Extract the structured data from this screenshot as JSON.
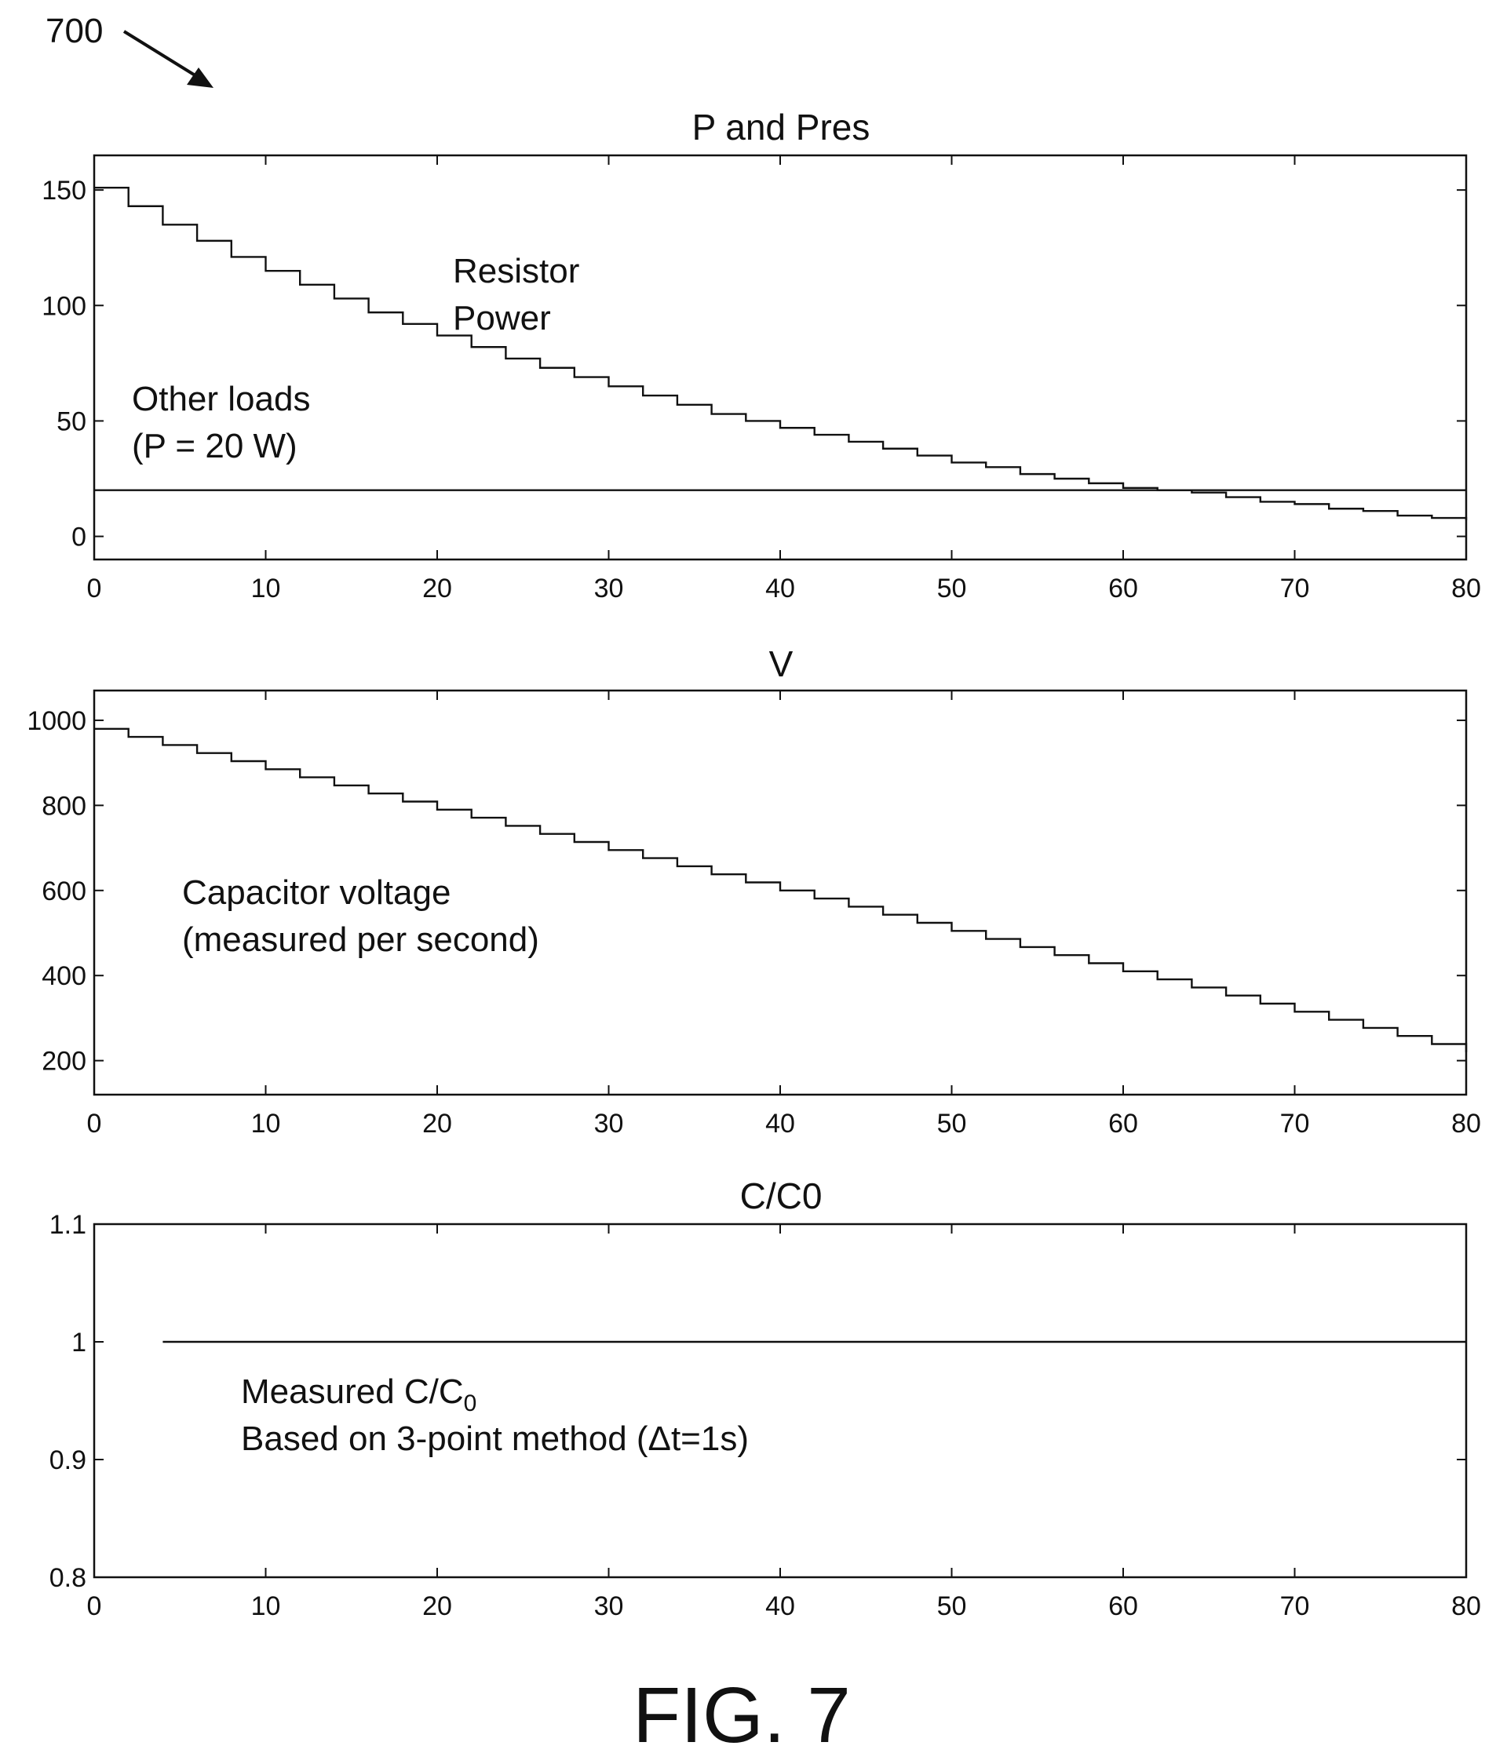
{
  "figure": {
    "ref_number": "700",
    "label": "FIG. 7"
  },
  "chart_data": [
    {
      "type": "line",
      "title": "P and Pres",
      "xlabel": "",
      "ylabel": "",
      "xlim": [
        0,
        80
      ],
      "ylim": [
        -10,
        165
      ],
      "x_ticks": [
        0,
        10,
        20,
        30,
        40,
        50,
        60,
        70,
        80
      ],
      "x_tick_labels": [
        "0",
        "10",
        "20",
        "30",
        "40",
        "50",
        "60",
        "70",
        "80"
      ],
      "y_ticks": [
        0,
        50,
        100,
        150
      ],
      "y_tick_labels": [
        "0",
        "50",
        "100",
        "150"
      ],
      "grid": false,
      "series": [
        {
          "name": "Resistor Power",
          "style": "step",
          "x": [
            0,
            2,
            4,
            6,
            8,
            10,
            12,
            14,
            16,
            18,
            20,
            22,
            24,
            26,
            28,
            30,
            32,
            34,
            36,
            38,
            40,
            42,
            44,
            46,
            48,
            50,
            52,
            54,
            56,
            58,
            60,
            62,
            64,
            66,
            68,
            70,
            72,
            74,
            76,
            78,
            80
          ],
          "y": [
            151,
            143,
            135,
            128,
            121,
            115,
            109,
            103,
            97,
            92,
            87,
            82,
            77,
            73,
            69,
            65,
            61,
            57,
            53,
            50,
            47,
            44,
            41,
            38,
            35,
            32,
            30,
            27,
            25,
            23,
            21,
            20,
            19,
            17,
            15,
            14,
            12,
            11,
            9,
            8,
            7
          ]
        },
        {
          "name": "Other loads",
          "style": "line",
          "x": [
            0,
            80
          ],
          "y": [
            20,
            20
          ]
        }
      ],
      "annotations": [
        {
          "lines": [
            "Resistor",
            "Power"
          ]
        },
        {
          "lines": [
            "Other loads",
            "(P = 20 W)"
          ]
        }
      ]
    },
    {
      "type": "line",
      "title": "V",
      "xlabel": "",
      "ylabel": "",
      "xlim": [
        0,
        80
      ],
      "ylim": [
        120,
        1070
      ],
      "x_ticks": [
        0,
        10,
        20,
        30,
        40,
        50,
        60,
        70,
        80
      ],
      "x_tick_labels": [
        "0",
        "10",
        "20",
        "30",
        "40",
        "50",
        "60",
        "70",
        "80"
      ],
      "y_ticks": [
        200,
        400,
        600,
        800,
        1000
      ],
      "y_tick_labels": [
        "200",
        "400",
        "600",
        "800",
        "1000"
      ],
      "grid": false,
      "series": [
        {
          "name": "Capacitor voltage",
          "style": "step",
          "x": [
            0,
            2,
            4,
            6,
            8,
            10,
            12,
            14,
            16,
            18,
            20,
            22,
            24,
            26,
            28,
            30,
            32,
            34,
            36,
            38,
            40,
            42,
            44,
            46,
            48,
            50,
            52,
            54,
            56,
            58,
            60,
            62,
            64,
            66,
            68,
            70,
            72,
            74,
            76,
            78,
            80
          ],
          "y": [
            980,
            961,
            942,
            923,
            904,
            885,
            866,
            847,
            828,
            809,
            790,
            771,
            752,
            733,
            714,
            695,
            676,
            657,
            638,
            619,
            600,
            581,
            562,
            543,
            524,
            505,
            486,
            467,
            448,
            429,
            410,
            391,
            372,
            353,
            334,
            315,
            296,
            277,
            258,
            239,
            220
          ]
        }
      ],
      "annotations": [
        {
          "lines": [
            "Capacitor voltage",
            "(measured per second)"
          ]
        }
      ]
    },
    {
      "type": "line",
      "title": "C/C0",
      "xlabel": "",
      "ylabel": "",
      "xlim": [
        0,
        80
      ],
      "ylim": [
        0.8,
        1.1
      ],
      "x_ticks": [
        0,
        10,
        20,
        30,
        40,
        50,
        60,
        70,
        80
      ],
      "x_tick_labels": [
        "0",
        "10",
        "20",
        "30",
        "40",
        "50",
        "60",
        "70",
        "80"
      ],
      "y_ticks": [
        0.8,
        0.9,
        1.0,
        1.1
      ],
      "y_tick_labels": [
        "0.8",
        "0.9",
        "1",
        "1.1"
      ],
      "grid": false,
      "series": [
        {
          "name": "Measured C/C0",
          "style": "line",
          "x": [
            4,
            80
          ],
          "y": [
            1.0,
            1.0
          ]
        }
      ],
      "annotations": [
        {
          "lines": [
            "Measured C/C0",
            "Based on 3-point method (Δt=1s)"
          ]
        }
      ]
    }
  ]
}
